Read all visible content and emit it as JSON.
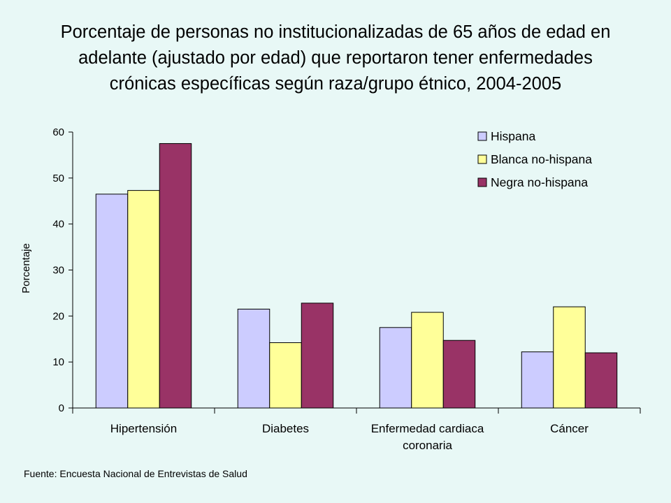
{
  "title": {
    "lines": [
      "Porcentaje de personas no institucionalizadas de 65 años de edad en",
      "adelante (ajustado por edad) que reportaron tener enfermedades",
      "crónicas específicas según raza/grupo étnico, 2004-2005"
    ]
  },
  "source": "Fuente: Encuesta Nacional de Entrevistas de Salud",
  "colors": {
    "hispana": "#ccccff",
    "blanca": "#ffff99",
    "negra": "#993366",
    "background": "#e8f8f6"
  },
  "chart_data": {
    "type": "bar",
    "title": "Porcentaje de personas no institucionalizadas de 65 años de edad en adelante (ajustado por edad) que reportaron tener enfermedades crónicas específicas según raza/grupo étnico, 2004-2005",
    "xlabel": "",
    "ylabel": "Porcentaje",
    "ylim": [
      0,
      60
    ],
    "yticks": [
      "0",
      "10",
      "20",
      "30",
      "40",
      "50",
      "60"
    ],
    "grid": false,
    "legend_position": "top-right",
    "categories": [
      [
        "Hipertensión"
      ],
      [
        "Diabetes"
      ],
      [
        "Enfermedad cardiaca",
        "coronaria"
      ],
      [
        "Cáncer"
      ]
    ],
    "series": [
      {
        "name": "Hispana",
        "color": "#ccccff",
        "values": [
          46.5,
          21.5,
          17.5,
          12.2
        ]
      },
      {
        "name": "Blanca no-hispana",
        "color": "#ffff99",
        "values": [
          47.3,
          14.2,
          20.8,
          22.0
        ]
      },
      {
        "name": "Negra no-hispana",
        "color": "#993366",
        "values": [
          57.5,
          22.8,
          14.7,
          12.0
        ]
      }
    ]
  }
}
